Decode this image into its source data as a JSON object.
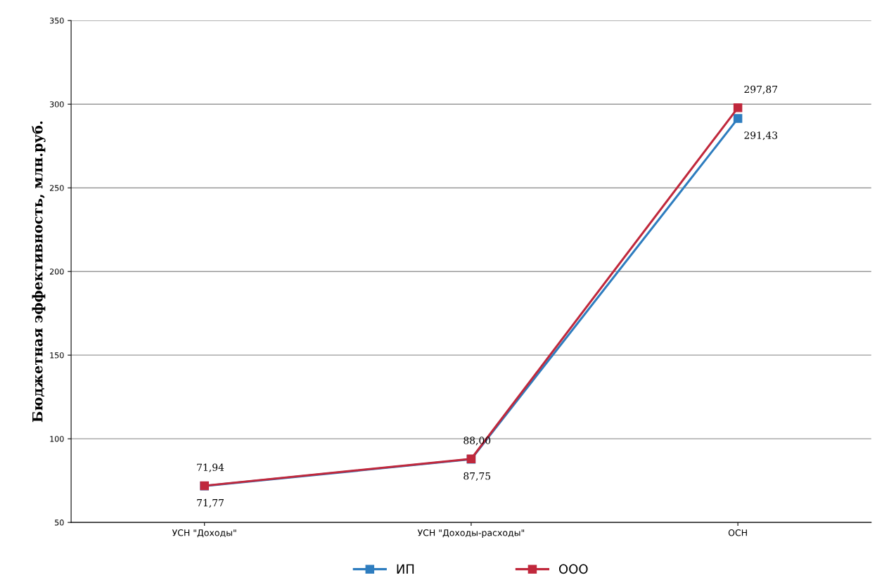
{
  "chart_data": {
    "type": "line",
    "ylabel": "Бюджетная эффективность, млн.руб.",
    "categories": [
      "УСН \"Доходы\"",
      "УСН \"Доходы-расходы\"",
      "ОСН"
    ],
    "series": [
      {
        "name": "ИП",
        "color": "#2e7dbf",
        "values": [
          71.77,
          87.75,
          291.43
        ],
        "value_labels": [
          "71,77",
          "87,75",
          "291,43"
        ]
      },
      {
        "name": "ООО",
        "color": "#c0283c",
        "values": [
          71.94,
          88.0,
          297.87
        ],
        "value_labels": [
          "71,94",
          "88,00",
          "297,87"
        ]
      }
    ],
    "ylim": [
      50,
      350
    ],
    "yticks": [
      50,
      100,
      150,
      200,
      250,
      300,
      350
    ],
    "grid": "y",
    "legend": "bottom",
    "marker": "square",
    "line_style": "solid"
  }
}
